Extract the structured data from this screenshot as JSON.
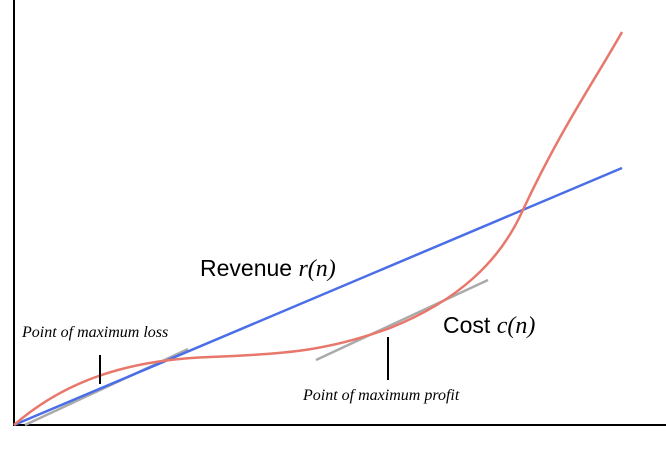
{
  "labels": {
    "revenue": {
      "name": "Revenue",
      "symbol": "r(n)"
    },
    "cost": {
      "name": "Cost",
      "symbol": "c(n)"
    },
    "max_loss": "Point of maximum loss",
    "max_profit": "Point of maximum profit"
  }
}
